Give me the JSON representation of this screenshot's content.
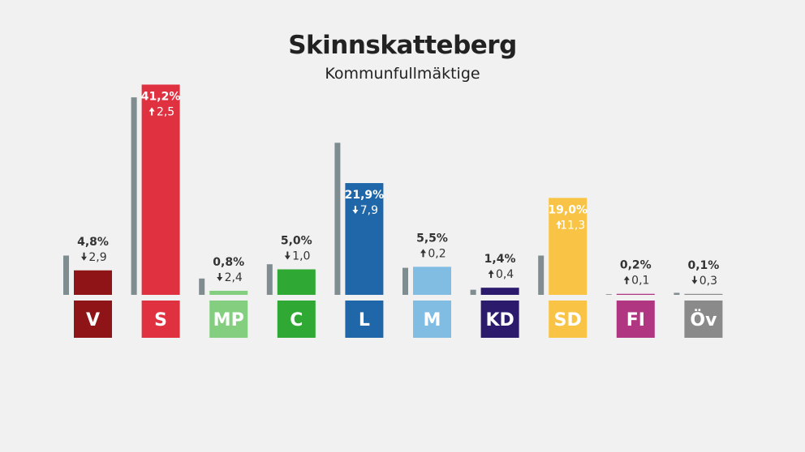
{
  "header": {
    "title": "Skinnskatteberg",
    "subtitle": "Kommunfullmäktige"
  },
  "chart_data": {
    "type": "bar",
    "title": "Skinnskatteberg",
    "subtitle": "Kommunfullmäktige",
    "ylim": [
      0,
      45
    ],
    "grid": false,
    "legend": "none",
    "categories": [
      "V",
      "S",
      "MP",
      "C",
      "L",
      "M",
      "KD",
      "SD",
      "FI",
      "Öv"
    ],
    "series": [
      {
        "values": [
          4.8,
          41.2,
          0.8,
          5.0,
          21.9,
          5.5,
          1.4,
          19.0,
          0.2,
          0.1
        ]
      },
      {
        "values": [
          7.7,
          38.7,
          3.2,
          6.0,
          29.8,
          5.3,
          1.0,
          7.7,
          0.1,
          0.4
        ]
      }
    ],
    "value_labels": [
      "4,8%",
      "41,2%",
      "0,8%",
      "5,0%",
      "21,9%",
      "5,5%",
      "1,4%",
      "19,0%",
      "0,2%",
      "0,1%"
    ],
    "change_labels": [
      "2,9",
      "2,5",
      "2,4",
      "1,0",
      "7,9",
      "0,2",
      "0,4",
      "11,3",
      "0,1",
      "0,3"
    ],
    "change_direction": [
      "down",
      "up",
      "down",
      "down",
      "down",
      "up",
      "up",
      "up",
      "up",
      "down"
    ],
    "colors": [
      "#8e1418",
      "#e03141",
      "#83cf7f",
      "#30a834",
      "#1f67a8",
      "#81bde2",
      "#2c1a6d",
      "#f9c445",
      "#b13681",
      "#8a8a8a"
    ],
    "label_text_colors": [
      "#ffffff",
      "#ffffff",
      "#ffffff",
      "#ffffff",
      "#ffffff",
      "#ffffff",
      "#ffffff",
      "#ffffff",
      "#ffffff",
      "#ffffff"
    ],
    "previous_color": "#7f8c90"
  }
}
